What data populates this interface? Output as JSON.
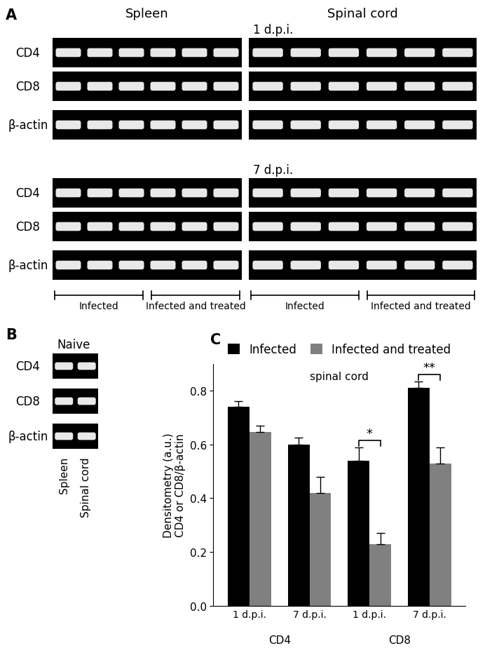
{
  "panel_a": {
    "label": "A",
    "columns": [
      "Spleen",
      "Spinal cord"
    ],
    "timepoints": [
      "1 d.p.i.",
      "7 d.p.i."
    ],
    "rows": [
      "CD4",
      "CD8",
      "β-actin"
    ],
    "groups": [
      "Infected",
      "Infected and treated"
    ]
  },
  "panel_b": {
    "label": "B",
    "title": "Naive",
    "rows": [
      "CD4",
      "CD8",
      "β-actin"
    ],
    "lanes": [
      "Spleen",
      "Spinal cord"
    ]
  },
  "chart_data": {
    "label": "C",
    "type": "bar",
    "title": "spinal cord",
    "y_label": "Densitometry (a.u.)\nCD4 or CD8/β-actin",
    "categories": [
      "1 d.p.i.",
      "7 d.p.i.",
      "1 d.p.i.",
      "7 d.p.i."
    ],
    "category_groups": [
      "CD4",
      "CD8"
    ],
    "series": [
      {
        "name": "Infected",
        "color": "#000000",
        "values": [
          0.74,
          0.6,
          0.54,
          0.81
        ],
        "errors": [
          0.02,
          0.025,
          0.05,
          0.025
        ]
      },
      {
        "name": "Infected and treated",
        "color": "#808080",
        "values": [
          0.645,
          0.42,
          0.23,
          0.53
        ],
        "errors": [
          0.025,
          0.06,
          0.04,
          0.06
        ]
      }
    ],
    "significance": [
      {
        "category_index": 2,
        "label": "*"
      },
      {
        "category_index": 3,
        "label": "**"
      }
    ],
    "ylim": [
      0,
      0.9
    ],
    "yticks": [
      {
        "value": 0,
        "label": "0.0"
      },
      0.2,
      0.4,
      0.6,
      0.8
    ],
    "legend": "upper center"
  }
}
